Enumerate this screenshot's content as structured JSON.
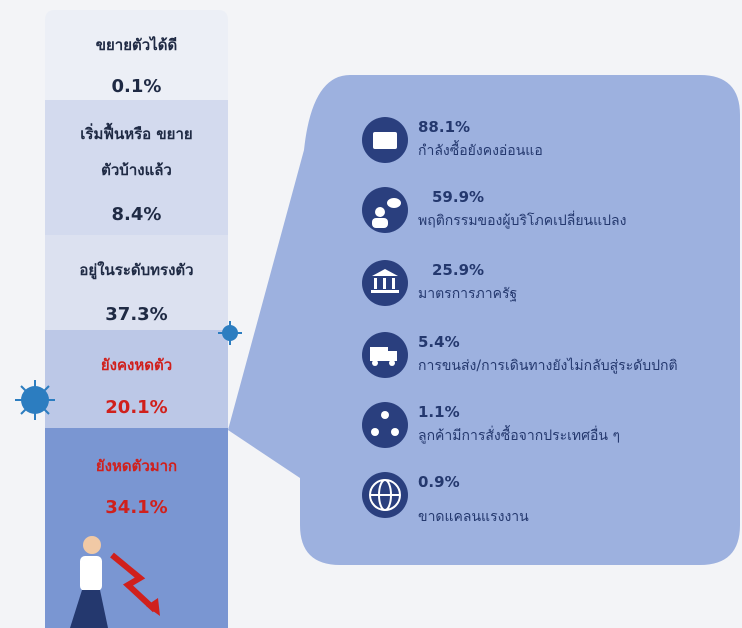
{
  "levels": [
    {
      "label": "ขยายตัวได้ดี",
      "value": "0.1%"
    },
    {
      "label": "เริ่มฟื้นหรือ ขยายตัวบ้างแล้ว",
      "value": "8.4%"
    },
    {
      "label": "อยู่ในระดับทรงตัว",
      "value": "37.3%"
    },
    {
      "label": "ยังคงหดตัว",
      "value": "20.1%"
    },
    {
      "label": "ยังหดตัวมาก",
      "value": "34.1%"
    }
  ],
  "reasons": [
    {
      "value": "88.1%",
      "label": "กำลังซื้อยังคงอ่อนแอ"
    },
    {
      "value": "59.9%",
      "label": "พฤติกรรมของผู้บริโภคเปลี่ยนแปลง"
    },
    {
      "value": "25.9%",
      "label": "มาตรการภาครัฐ"
    },
    {
      "value": "5.4%",
      "label": "การขนส่ง/การเดินทางยังไม่กลับสู่ระดับปกติ"
    },
    {
      "value": "1.1%",
      "label": "ลูกค้ามีการสั่งซื้อจากประเทศอื่น ๆ"
    },
    {
      "value": "0.9%",
      "label": "ขาดแคลนแรงงาน"
    }
  ]
}
